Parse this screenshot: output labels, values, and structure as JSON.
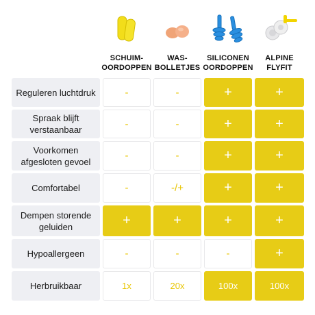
{
  "colors": {
    "accent_yellow": "#e7cc16",
    "symbol_yellow": "#e8c500",
    "label_bg": "#eeeff3"
  },
  "columns": [
    {
      "key": "foam",
      "label": "SCHUIM-\nOORDOPPEN",
      "image": "foam-earplugs-icon"
    },
    {
      "key": "wax",
      "label": "WAS-\nBOLLETJES",
      "image": "wax-balls-icon"
    },
    {
      "key": "silicone",
      "label": "SILICONEN\nOORDOPPEN",
      "image": "silicone-earplugs-icon"
    },
    {
      "key": "alpine",
      "label": "ALPINE\nFLYFIT",
      "image": "alpine-flyfit-icon"
    }
  ],
  "rows": [
    {
      "label": "Reguleren luchtdruk",
      "cells": [
        "-",
        "-",
        "+",
        "+"
      ],
      "filled": [
        false,
        false,
        true,
        true
      ]
    },
    {
      "label": "Spraak blijft\nverstaanbaar",
      "cells": [
        "-",
        "-",
        "+",
        "+"
      ],
      "filled": [
        false,
        false,
        true,
        true
      ]
    },
    {
      "label": "Voorkomen\nafgesloten gevoel",
      "cells": [
        "-",
        "-",
        "+",
        "+"
      ],
      "filled": [
        false,
        false,
        true,
        true
      ]
    },
    {
      "label": "Comfortabel",
      "cells": [
        "-",
        "-/+",
        "+",
        "+"
      ],
      "filled": [
        false,
        false,
        true,
        true
      ]
    },
    {
      "label": "Dempen storende\ngeluiden",
      "cells": [
        "+",
        "+",
        "+",
        "+"
      ],
      "filled": [
        true,
        true,
        true,
        true
      ]
    },
    {
      "label": "Hypoallergeen",
      "cells": [
        "-",
        "-",
        "-",
        "+"
      ],
      "filled": [
        false,
        false,
        false,
        true
      ]
    },
    {
      "label": "Herbruikbaar",
      "cells": [
        "1x",
        "20x",
        "100x",
        "100x"
      ],
      "filled": [
        false,
        false,
        true,
        true
      ]
    }
  ]
}
